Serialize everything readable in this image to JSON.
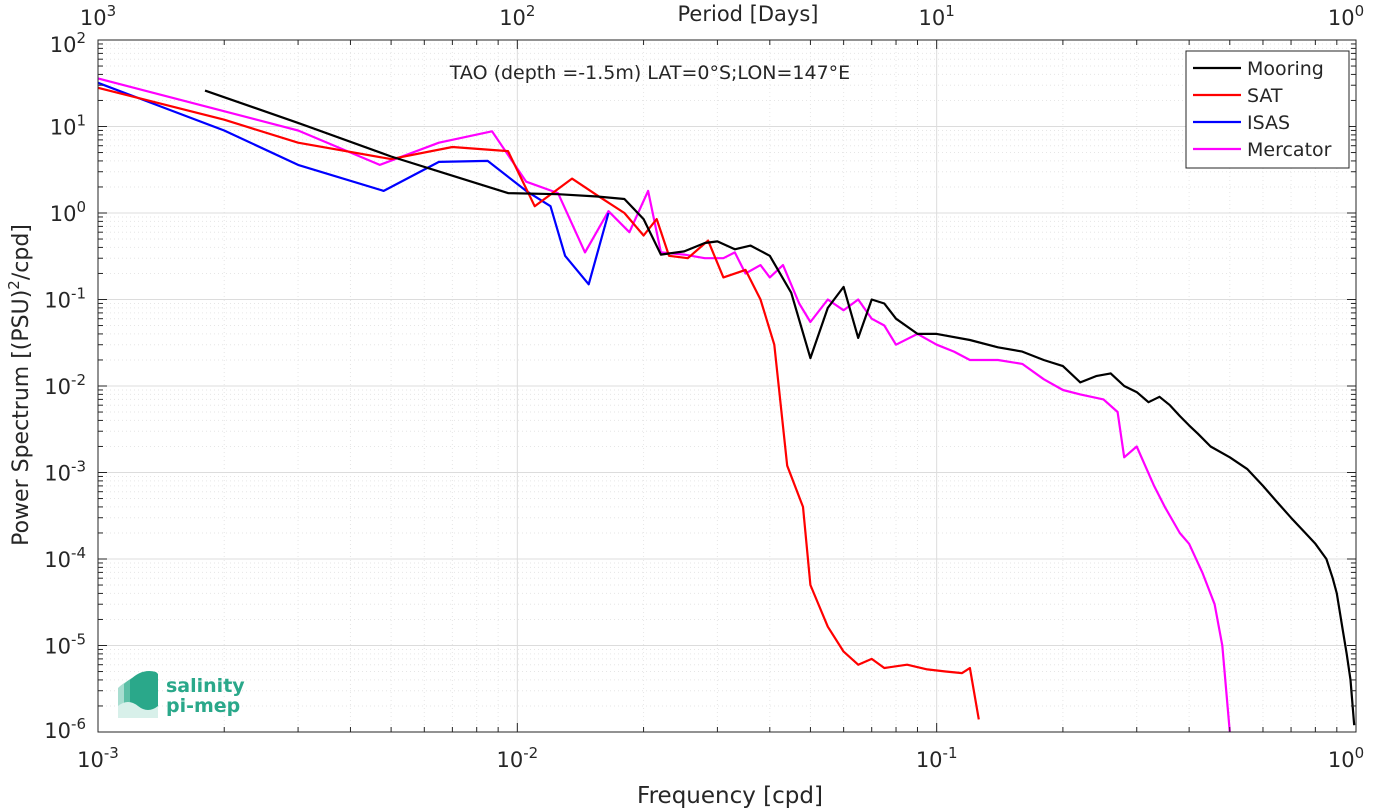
{
  "chart_data": {
    "type": "line",
    "title": "TAO (depth =-1.5m) LAT=0°S;LON=147°E",
    "xlabel": "Frequency [cpd]",
    "ylabel": "Power Spectrum [(PSU)²/cpd]",
    "top_axis_label": "Period [Days]",
    "xscale": "log",
    "yscale": "log",
    "xlim": [
      0.001,
      1
    ],
    "ylim": [
      1e-06,
      100
    ],
    "grid": true,
    "legend_position": "top-right",
    "x_ticks": [
      {
        "value": 0.001,
        "base": "10",
        "exp": "-3"
      },
      {
        "value": 0.01,
        "base": "10",
        "exp": "-2"
      },
      {
        "value": 0.1,
        "base": "10",
        "exp": "-1"
      },
      {
        "value": 1,
        "base": "10",
        "exp": "0"
      }
    ],
    "top_ticks": [
      {
        "value": 0.001,
        "base": "10",
        "exp": "3"
      },
      {
        "value": 0.01,
        "base": "10",
        "exp": "2"
      },
      {
        "value": 0.1,
        "base": "10",
        "exp": "1"
      },
      {
        "value": 1,
        "base": "10",
        "exp": "0"
      }
    ],
    "y_ticks": [
      {
        "value": 1e-06,
        "base": "10",
        "exp": "-6"
      },
      {
        "value": 1e-05,
        "base": "10",
        "exp": "-5"
      },
      {
        "value": 0.0001,
        "base": "10",
        "exp": "-4"
      },
      {
        "value": 0.001,
        "base": "10",
        "exp": "-3"
      },
      {
        "value": 0.01,
        "base": "10",
        "exp": "-2"
      },
      {
        "value": 0.1,
        "base": "10",
        "exp": "-1"
      },
      {
        "value": 1,
        "base": "10",
        "exp": "0"
      },
      {
        "value": 10,
        "base": "10",
        "exp": "1"
      },
      {
        "value": 100,
        "base": "10",
        "exp": "2"
      }
    ],
    "series": [
      {
        "name": "Mooring",
        "color": "#000000",
        "points": [
          [
            0.0018,
            26
          ],
          [
            0.003,
            11
          ],
          [
            0.005,
            4.5
          ],
          [
            0.007,
            2.7
          ],
          [
            0.0095,
            1.7
          ],
          [
            0.0125,
            1.65
          ],
          [
            0.0155,
            1.55
          ],
          [
            0.018,
            1.45
          ],
          [
            0.02,
            0.85
          ],
          [
            0.022,
            0.33
          ],
          [
            0.025,
            0.36
          ],
          [
            0.028,
            0.45
          ],
          [
            0.03,
            0.47
          ],
          [
            0.033,
            0.38
          ],
          [
            0.036,
            0.42
          ],
          [
            0.04,
            0.32
          ],
          [
            0.045,
            0.12
          ],
          [
            0.05,
            0.021
          ],
          [
            0.055,
            0.08
          ],
          [
            0.06,
            0.14
          ],
          [
            0.065,
            0.036
          ],
          [
            0.07,
            0.1
          ],
          [
            0.075,
            0.09
          ],
          [
            0.08,
            0.06
          ],
          [
            0.09,
            0.04
          ],
          [
            0.1,
            0.04
          ],
          [
            0.12,
            0.034
          ],
          [
            0.14,
            0.028
          ],
          [
            0.16,
            0.025
          ],
          [
            0.18,
            0.02
          ],
          [
            0.2,
            0.017
          ],
          [
            0.22,
            0.011
          ],
          [
            0.24,
            0.013
          ],
          [
            0.26,
            0.014
          ],
          [
            0.28,
            0.01
          ],
          [
            0.3,
            0.0085
          ],
          [
            0.32,
            0.0065
          ],
          [
            0.34,
            0.0075
          ],
          [
            0.36,
            0.006
          ],
          [
            0.38,
            0.0045
          ],
          [
            0.4,
            0.0035
          ],
          [
            0.42,
            0.0028
          ],
          [
            0.45,
            0.002
          ],
          [
            0.5,
            0.0015
          ],
          [
            0.55,
            0.0011
          ],
          [
            0.6,
            0.0007
          ],
          [
            0.65,
            0.00045
          ],
          [
            0.7,
            0.0003
          ],
          [
            0.75,
            0.00021
          ],
          [
            0.8,
            0.00015
          ],
          [
            0.85,
            0.0001
          ],
          [
            0.88,
            6e-05
          ],
          [
            0.9,
            4e-05
          ],
          [
            0.93,
            1.5e-05
          ],
          [
            0.95,
            8e-06
          ],
          [
            0.97,
            4e-06
          ],
          [
            0.99,
            1.2e-06
          ]
        ]
      },
      {
        "name": "SAT",
        "color": "#ff0000",
        "points": [
          [
            0.001,
            28
          ],
          [
            0.002,
            12
          ],
          [
            0.003,
            6.5
          ],
          [
            0.005,
            4.2
          ],
          [
            0.007,
            5.8
          ],
          [
            0.0085,
            5.4
          ],
          [
            0.0095,
            5.2
          ],
          [
            0.011,
            1.2
          ],
          [
            0.0135,
            2.5
          ],
          [
            0.0155,
            1.6
          ],
          [
            0.018,
            1.0
          ],
          [
            0.02,
            0.55
          ],
          [
            0.0215,
            0.85
          ],
          [
            0.023,
            0.32
          ],
          [
            0.0255,
            0.3
          ],
          [
            0.0285,
            0.48
          ],
          [
            0.031,
            0.18
          ],
          [
            0.035,
            0.22
          ],
          [
            0.038,
            0.1
          ],
          [
            0.041,
            0.03
          ],
          [
            0.044,
            0.0012
          ],
          [
            0.048,
            0.0004
          ],
          [
            0.05,
            5e-05
          ],
          [
            0.055,
            1.65e-05
          ],
          [
            0.06,
            8.5e-06
          ],
          [
            0.065,
            6e-06
          ],
          [
            0.07,
            7e-06
          ],
          [
            0.075,
            5.5e-06
          ],
          [
            0.085,
            6e-06
          ],
          [
            0.095,
            5.3e-06
          ],
          [
            0.105,
            5e-06
          ],
          [
            0.115,
            4.8e-06
          ],
          [
            0.12,
            5.5e-06
          ],
          [
            0.126,
            1.4e-06
          ]
        ]
      },
      {
        "name": "ISAS",
        "color": "#0000ff",
        "points": [
          [
            0.001,
            32
          ],
          [
            0.002,
            9
          ],
          [
            0.003,
            3.6
          ],
          [
            0.0048,
            1.8
          ],
          [
            0.0065,
            3.9
          ],
          [
            0.0085,
            4.0
          ],
          [
            0.0105,
            1.8
          ],
          [
            0.012,
            1.2
          ],
          [
            0.013,
            0.32
          ],
          [
            0.0148,
            0.15
          ],
          [
            0.0165,
            1.0
          ]
        ]
      },
      {
        "name": "Mercator",
        "color": "#ff00ff",
        "points": [
          [
            0.001,
            36
          ],
          [
            0.003,
            9
          ],
          [
            0.0047,
            3.6
          ],
          [
            0.0065,
            6.5
          ],
          [
            0.0087,
            8.8
          ],
          [
            0.0105,
            2.3
          ],
          [
            0.0125,
            1.7
          ],
          [
            0.0145,
            0.35
          ],
          [
            0.0165,
            1.05
          ],
          [
            0.0185,
            0.6
          ],
          [
            0.0205,
            1.8
          ],
          [
            0.022,
            0.35
          ],
          [
            0.025,
            0.33
          ],
          [
            0.028,
            0.3
          ],
          [
            0.031,
            0.3
          ],
          [
            0.033,
            0.35
          ],
          [
            0.035,
            0.2
          ],
          [
            0.038,
            0.25
          ],
          [
            0.04,
            0.18
          ],
          [
            0.043,
            0.25
          ],
          [
            0.047,
            0.09
          ],
          [
            0.05,
            0.055
          ],
          [
            0.055,
            0.1
          ],
          [
            0.06,
            0.075
          ],
          [
            0.065,
            0.1
          ],
          [
            0.07,
            0.06
          ],
          [
            0.075,
            0.05
          ],
          [
            0.08,
            0.03
          ],
          [
            0.09,
            0.04
          ],
          [
            0.1,
            0.03
          ],
          [
            0.11,
            0.025
          ],
          [
            0.12,
            0.02
          ],
          [
            0.14,
            0.02
          ],
          [
            0.16,
            0.018
          ],
          [
            0.18,
            0.012
          ],
          [
            0.2,
            0.009
          ],
          [
            0.22,
            0.008
          ],
          [
            0.25,
            0.007
          ],
          [
            0.27,
            0.005
          ],
          [
            0.28,
            0.0015
          ],
          [
            0.3,
            0.002
          ],
          [
            0.33,
            0.0007
          ],
          [
            0.35,
            0.0004
          ],
          [
            0.38,
            0.0002
          ],
          [
            0.4,
            0.00015
          ],
          [
            0.43,
            7e-05
          ],
          [
            0.46,
            3e-05
          ],
          [
            0.48,
            1e-05
          ],
          [
            0.5,
            1e-06
          ]
        ]
      }
    ]
  },
  "logo": {
    "line1": "salinity",
    "line2": "pi-mep",
    "color": "#2aa88a"
  }
}
